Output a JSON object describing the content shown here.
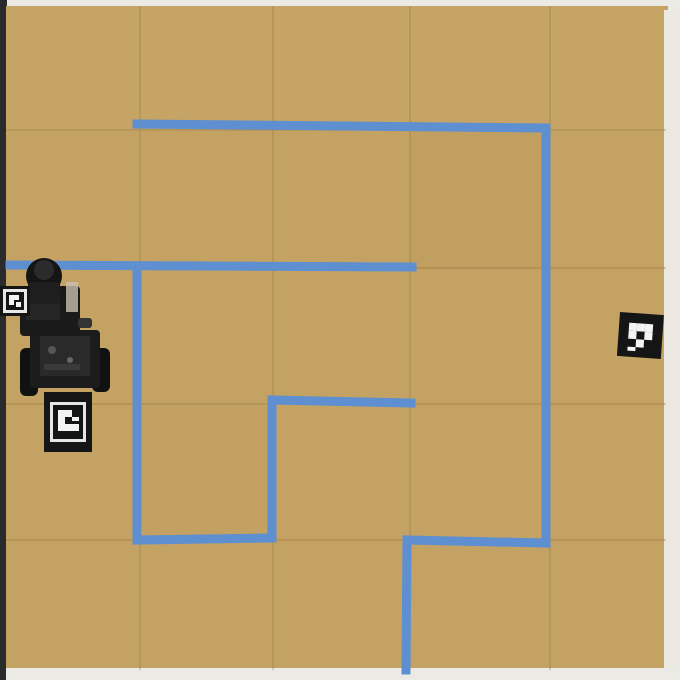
{
  "scene": {
    "description_type": "overhead-photo",
    "colors": {
      "border": "#eceae4",
      "cardboard": "#c4a264",
      "cardboard_shade": "#b99656",
      "seam": "#9c7c44",
      "tape": "#5e8fd0",
      "marker_black": "#151515",
      "marker_white": "#f4f4f4",
      "robot_body": "#1c1c1c"
    },
    "grid": {
      "columns": 5,
      "rows": 5
    },
    "elements": {
      "tape_maze": "blue-tape-maze",
      "robot": "wheeled-robot",
      "markers": [
        "aruco-marker-robot-side",
        "aruco-marker-robot-front",
        "aruco-marker-goal"
      ]
    }
  }
}
